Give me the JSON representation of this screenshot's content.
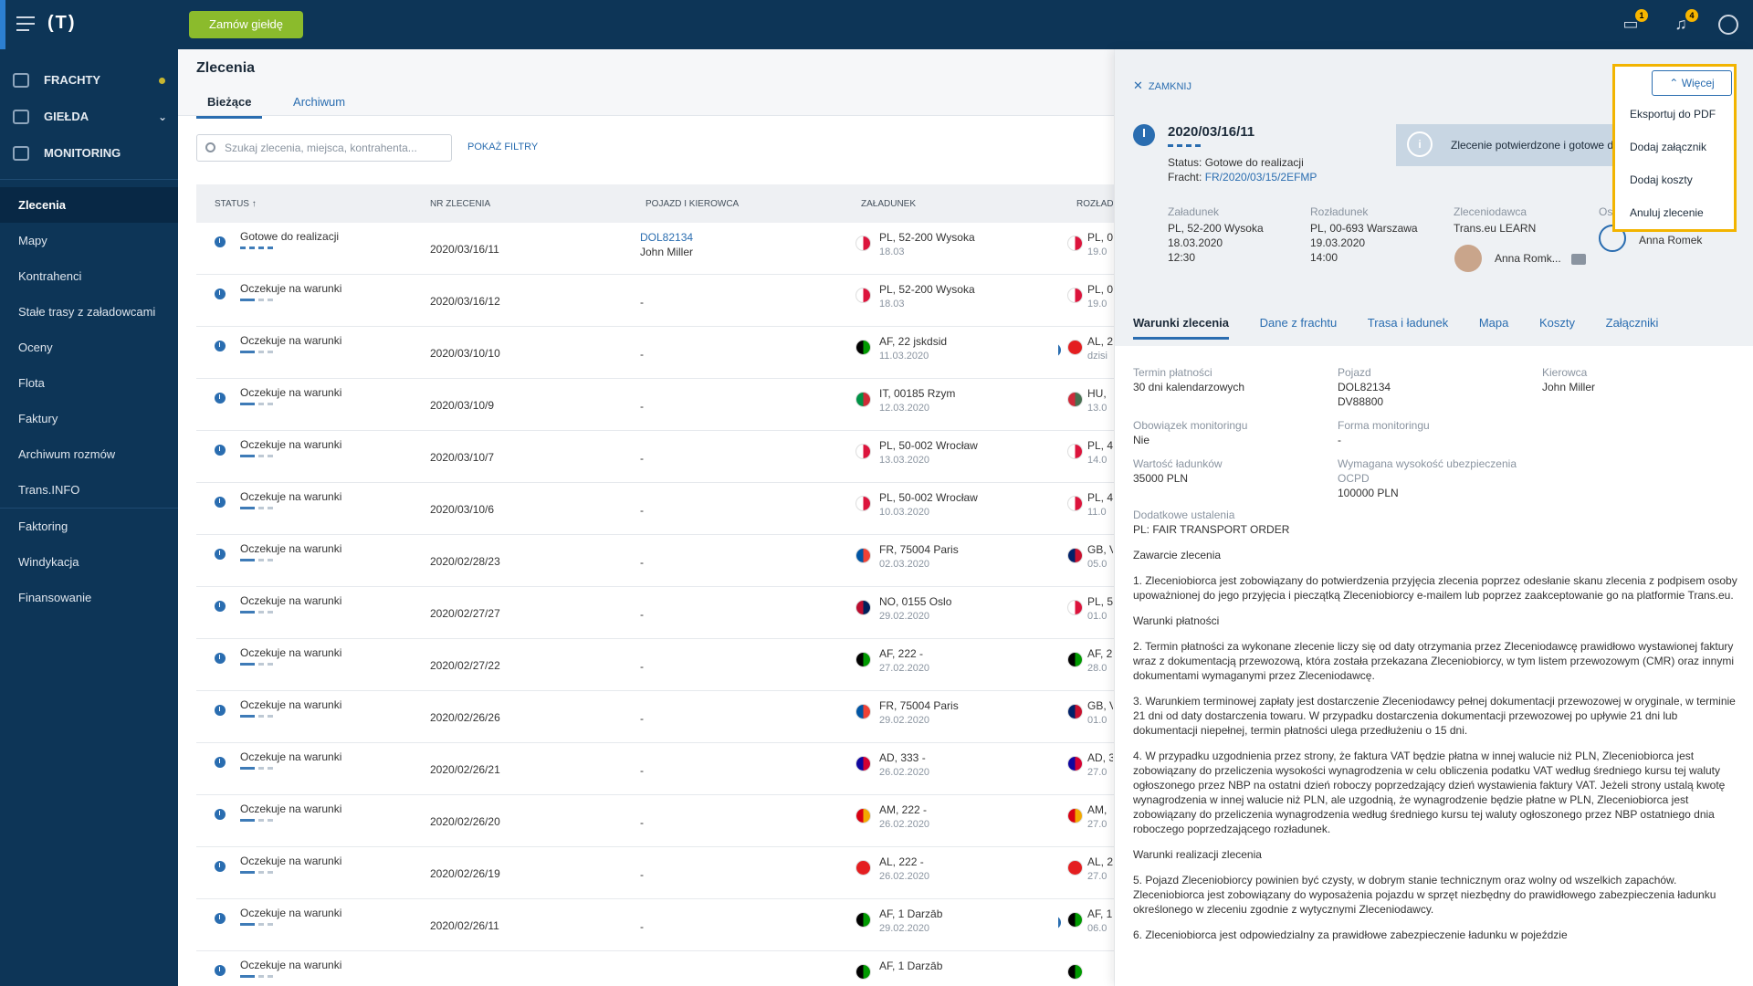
{
  "app": {
    "logo": "(T)",
    "order_button": "Zamów giełdę",
    "messages_badge": "1",
    "notifications_badge": "4"
  },
  "sidebar": {
    "main": [
      {
        "label": "FRACHTY",
        "icon": "freight-icon"
      },
      {
        "label": "GIEŁDA",
        "icon": "exchange-icon"
      },
      {
        "label": "MONITORING",
        "icon": "monitoring-icon"
      }
    ],
    "links": [
      "Zlecenia",
      "Mapy",
      "Kontrahenci",
      "Stałe trasy z załadowcami",
      "Oceny",
      "Flota",
      "Faktury",
      "Archiwum rozmów",
      "Trans.INFO",
      "Faktoring",
      "Windykacja",
      "Finansowanie"
    ]
  },
  "page": {
    "title": "Zlecenia",
    "tabs": [
      "Bieżące",
      "Archiwum"
    ],
    "search_placeholder": "Szukaj zlecenia, miejsca, kontrahenta...",
    "filters": "POKAŻ FILTRY"
  },
  "table": {
    "headers": [
      "STATUS ↑",
      "NR ZLECENIA",
      "POJAZD I KIEROWCA",
      "ZAŁADUNEK",
      "ROZŁADUN"
    ],
    "rows": [
      {
        "status": "Gotowe do realizacji",
        "nr": "2020/03/16/11",
        "vehicle": "DOL82134",
        "driver": "John Miller",
        "load": "PL, 52-200 Wysoka",
        "load_date": "18.03",
        "load_flag": "pl",
        "unl": "PL, 0",
        "unl_date": "19.0",
        "unl_flag": "pl"
      },
      {
        "status": "Oczekuje na warunki",
        "nr": "2020/03/16/12",
        "vehicle": "-",
        "driver": "",
        "load": "PL, 52-200 Wysoka",
        "load_date": "18.03",
        "load_flag": "pl",
        "unl": "PL, 0",
        "unl_date": "19.0",
        "unl_flag": "pl"
      },
      {
        "status": "Oczekuje na warunki",
        "nr": "2020/03/10/10",
        "vehicle": "-",
        "driver": "",
        "load": "AF, 22 jskdsid",
        "load_date": "11.03.2020",
        "load_flag": "af",
        "unl": "AL, 2",
        "unl_date": "dzisi",
        "unl_flag": "al",
        "chat": true
      },
      {
        "status": "Oczekuje na warunki",
        "nr": "2020/03/10/9",
        "vehicle": "-",
        "driver": "",
        "load": "IT, 00185 Rzym",
        "load_date": "12.03.2020",
        "load_flag": "it",
        "unl": "HU,",
        "unl_date": "13.0",
        "unl_flag": "hu"
      },
      {
        "status": "Oczekuje na warunki",
        "nr": "2020/03/10/7",
        "vehicle": "-",
        "driver": "",
        "load": "PL, 50-002 Wrocław",
        "load_date": "13.03.2020",
        "load_flag": "pl",
        "unl": "PL, 4",
        "unl_date": "14.0",
        "unl_flag": "pl"
      },
      {
        "status": "Oczekuje na warunki",
        "nr": "2020/03/10/6",
        "vehicle": "-",
        "driver": "",
        "load": "PL, 50-002 Wrocław",
        "load_date": "10.03.2020",
        "load_flag": "pl",
        "unl": "PL, 4",
        "unl_date": "11.0",
        "unl_flag": "pl"
      },
      {
        "status": "Oczekuje na warunki",
        "nr": "2020/02/28/23",
        "vehicle": "-",
        "driver": "",
        "load": "FR, 75004 Paris",
        "load_date": "02.03.2020",
        "load_flag": "fr",
        "unl": "GB, V",
        "unl_date": "05.0",
        "unl_flag": "gb"
      },
      {
        "status": "Oczekuje na warunki",
        "nr": "2020/02/27/27",
        "vehicle": "-",
        "driver": "",
        "load": "NO, 0155 Oslo",
        "load_date": "29.02.2020",
        "load_flag": "no",
        "unl": "PL, 5",
        "unl_date": "01.0",
        "unl_flag": "pl"
      },
      {
        "status": "Oczekuje na warunki",
        "nr": "2020/02/27/22",
        "vehicle": "-",
        "driver": "",
        "load": "AF, 222 -",
        "load_date": "27.02.2020",
        "load_flag": "af",
        "unl": "AF, 2",
        "unl_date": "28.0",
        "unl_flag": "af"
      },
      {
        "status": "Oczekuje na warunki",
        "nr": "2020/02/26/26",
        "vehicle": "-",
        "driver": "",
        "load": "FR, 75004 Paris",
        "load_date": "29.02.2020",
        "load_flag": "fr",
        "unl": "GB, V",
        "unl_date": "01.0",
        "unl_flag": "gb"
      },
      {
        "status": "Oczekuje na warunki",
        "nr": "2020/02/26/21",
        "vehicle": "-",
        "driver": "",
        "load": "AD, 333 -",
        "load_date": "26.02.2020",
        "load_flag": "ad",
        "unl": "AD, 3",
        "unl_date": "27.0",
        "unl_flag": "ad"
      },
      {
        "status": "Oczekuje na warunki",
        "nr": "2020/02/26/20",
        "vehicle": "-",
        "driver": "",
        "load": "AM, 222 -",
        "load_date": "26.02.2020",
        "load_flag": "am",
        "unl": "AM,",
        "unl_date": "27.0",
        "unl_flag": "am"
      },
      {
        "status": "Oczekuje na warunki",
        "nr": "2020/02/26/19",
        "vehicle": "-",
        "driver": "",
        "load": "AL, 222 -",
        "load_date": "26.02.2020",
        "load_flag": "al",
        "unl": "AL, 2",
        "unl_date": "27.0",
        "unl_flag": "al"
      },
      {
        "status": "Oczekuje na warunki",
        "nr": "2020/02/26/11",
        "vehicle": "-",
        "driver": "",
        "load": "AF, 1 Darzāb",
        "load_date": "29.02.2020",
        "load_flag": "af",
        "unl": "AF, 1",
        "unl_date": "06.0",
        "unl_flag": "af",
        "chat": true
      },
      {
        "status": "Oczekuje na warunki",
        "nr": "",
        "vehicle": "",
        "driver": "",
        "load": "AF, 1 Darzāb",
        "load_date": "",
        "load_flag": "af",
        "unl": "",
        "unl_date": "",
        "unl_flag": "af"
      }
    ]
  },
  "panel": {
    "close": "ZAMKNIJ",
    "order_no": "2020/03/16/11",
    "status": "Status: Gotowe do realizacji",
    "fracht_label": "Fracht:",
    "fracht_link": "FR/2020/03/15/2EFMP",
    "info": "Zlecenie potwierdzone i gotowe d",
    "load_label": "Załadunek",
    "load_lines": [
      "PL, 52-200 Wysoka",
      "18.03.2020",
      "12:30"
    ],
    "unload_label": "Rozładunek",
    "unload_lines": [
      "PL, 00-693 Warszawa",
      "19.03.2020",
      "14:00"
    ],
    "client_label": "Zleceniodawca",
    "client": "Trans.eu LEARN",
    "client_person": "Anna Romk...",
    "os_label": "Os",
    "os_person": "Anna Romek",
    "tabs": [
      "Warunki zlecenia",
      "Dane z frachtu",
      "Trasa i ładunek",
      "Mapa",
      "Koszty",
      "Załączniki"
    ],
    "fields": [
      {
        "label": "Termin płatności",
        "value": "30 dni kalendarzowych"
      },
      {
        "label": "Pojazd",
        "value": "DOL82134",
        "value2": "DV88800"
      },
      {
        "label": "Kierowca",
        "value": "John Miller"
      },
      {
        "label": "Obowiązek monitoringu",
        "value": "Nie"
      },
      {
        "label": "Forma monitoringu",
        "value": "-"
      },
      {
        "label": "",
        "value": ""
      },
      {
        "label": "Wartość ładunków",
        "value": "35000 PLN"
      },
      {
        "label": "Wymagana wysokość ubezpieczenia OCPD",
        "value": "100000 PLN"
      },
      {
        "label": "",
        "value": ""
      }
    ],
    "extra_label": "Dodatkowe ustalenia",
    "extra_value": "PL: FAIR TRANSPORT ORDER",
    "paragraphs": [
      "Zawarcie zlecenia",
      "1. Zleceniobiorca jest zobowiązany do potwierdzenia przyjęcia zlecenia poprzez odesłanie skanu zlecenia z podpisem osoby upoważnionej do jego przyjęcia i pieczątką Zleceniobiorcy e-mailem lub poprzez zaakceptowanie go na platformie Trans.eu.",
      "Warunki płatności",
      "2. Termin płatności za wykonane zlecenie liczy się od daty otrzymania przez Zleceniodawcę prawidłowo wystawionej faktury wraz z dokumentacją przewozową, która została przekazana Zleceniobiorcy, w tym listem przewozowym (CMR) oraz innymi dokumentami wymaganymi przez Zleceniodawcę.",
      "3. Warunkiem terminowej zapłaty jest dostarczenie Zleceniodawcy pełnej dokumentacji przewozowej w oryginale, w terminie 21 dni od daty dostarczenia towaru. W przypadku dostarczenia dokumentacji przewozowej po upływie 21 dni lub dokumentacji niepełnej, termin płatności ulega przedłużeniu o 15 dni.",
      "4. W przypadku uzgodnienia przez strony, że faktura VAT będzie płatna w innej walucie niż PLN, Zleceniobiorca jest zobowiązany do przeliczenia wysokości wynagrodzenia w celu obliczenia podatku VAT według średniego kursu tej waluty ogłoszonego przez NBP na ostatni dzień roboczy poprzedzający dzień wystawienia faktury VAT. Jeżeli strony ustalą kwotę wynagrodzenia w innej walucie niż PLN, ale uzgodnią, że wynagrodzenie będzie płatne w PLN, Zleceniobiorca jest zobowiązany do przeliczenia wynagrodzenia według średniego kursu tej waluty ogłoszonego przez NBP ostatniego dnia roboczego poprzedzającego rozładunek.",
      "Warunki realizacji zlecenia",
      "5. Pojazd Zleceniobiorcy powinien być czysty, w dobrym stanie technicznym oraz wolny od wszelkich zapachów. Zleceniobiorca jest zobowiązany do wyposażenia pojazdu w sprzęt niezbędny do prawidłowego zabezpieczenia ładunku określonego w zleceniu zgodnie z wytycznymi Zleceniodawcy.",
      "6. Zleceniobiorca jest odpowiedzialny za prawidłowe zabezpieczenie ładunku w pojeździe"
    ],
    "more_button": "Więcej",
    "menu": [
      "Eksportuj do PDF",
      "Dodaj załącznik",
      "Dodaj koszty",
      "Anuluj zlecenie"
    ]
  },
  "flags": {
    "pl": [
      "#ffffff",
      "#dc143c"
    ],
    "af": [
      "#000000",
      "#009900"
    ],
    "al": [
      "#e41e20",
      "#e41e20"
    ],
    "it": [
      "#009246",
      "#ce2b37"
    ],
    "hu": [
      "#ce2939",
      "#477050"
    ],
    "fr": [
      "#0055a4",
      "#ef4135"
    ],
    "gb": [
      "#012169",
      "#c8102e"
    ],
    "no": [
      "#ba0c2f",
      "#00205b"
    ],
    "ad": [
      "#10069f",
      "#d50032"
    ],
    "am": [
      "#d90012",
      "#f2a800"
    ]
  }
}
